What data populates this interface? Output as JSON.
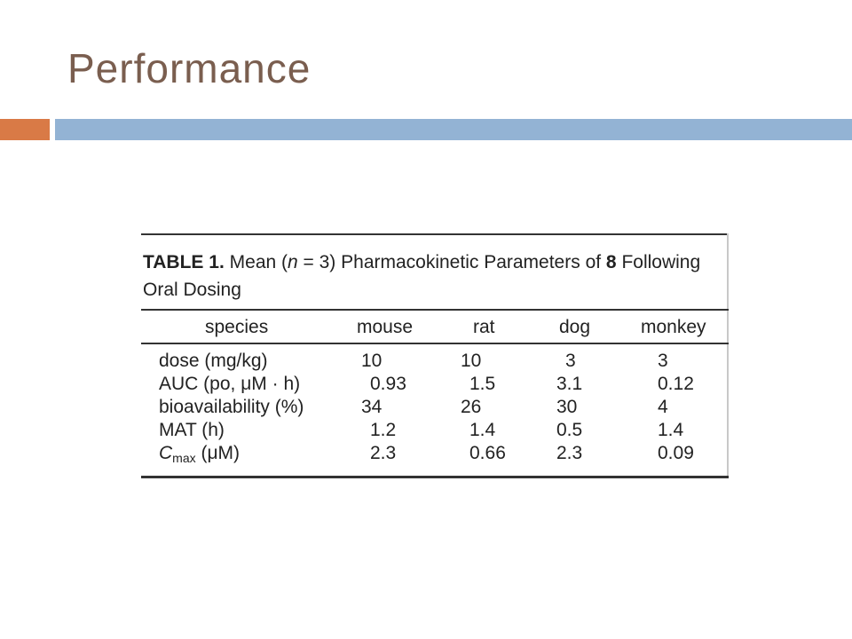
{
  "slide": {
    "title": "Performance",
    "accent_orange": "#d97a46",
    "accent_blue": "#93b3d4"
  },
  "table": {
    "label": "TABLE 1.",
    "caption_before_n": "Mean (",
    "n_symbol": "n",
    "caption_between": " = 3) Pharmacokinetic Parameters of ",
    "compound": "8",
    "caption_after": " Following Oral Dosing",
    "headers": [
      "species",
      "mouse",
      "rat",
      "dog",
      "monkey"
    ],
    "rows": [
      {
        "label": "dose (mg/kg)",
        "values": [
          "10",
          "10",
          "3",
          "3"
        ]
      },
      {
        "label": "AUC (po, μM · h)",
        "values": [
          "0.93",
          "1.5",
          "3.1",
          "0.12"
        ]
      },
      {
        "label": "bioavailability (%)",
        "values": [
          "34",
          "26",
          "30",
          "4"
        ]
      },
      {
        "label": "MAT (h)",
        "values": [
          "1.2",
          "1.4",
          "0.5",
          "1.4"
        ]
      },
      {
        "label_main": "C",
        "label_sub": "max",
        "label_rest": " (μM)",
        "values": [
          "2.3",
          "0.66",
          "2.3",
          "0.09"
        ]
      }
    ]
  }
}
